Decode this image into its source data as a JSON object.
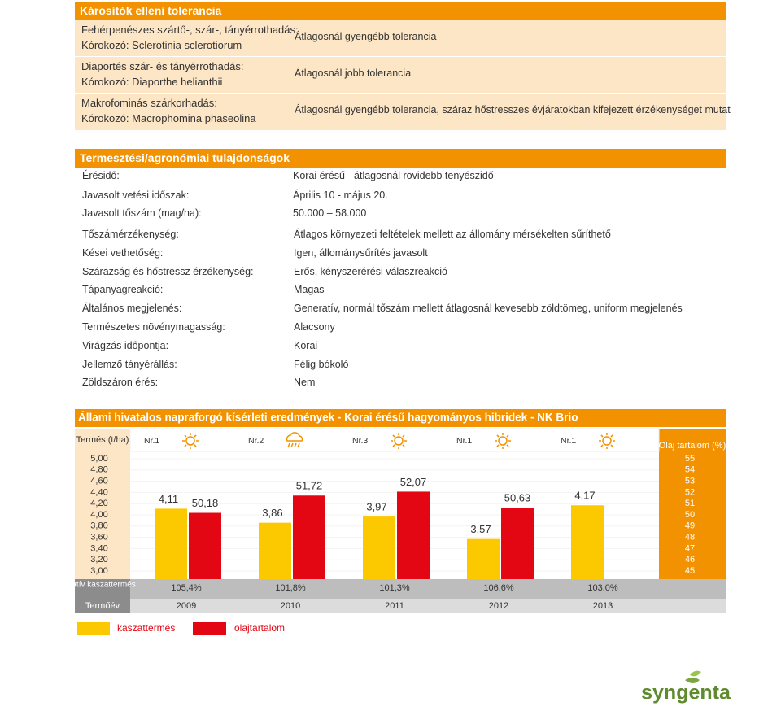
{
  "tolerance": {
    "title": "Károsítók elleni tolerancia",
    "rows": [
      {
        "left": [
          "Fehérpenészes szártő-, szár-, tányérrothadás:",
          "Kórokozó: Sclerotinia sclerotiorum"
        ],
        "right": "Átlagosnál gyengébb tolerancia"
      },
      {
        "left": [
          "Diaportés szár- és tányérrothadás:",
          "Kórokozó: Diaporthe helianthii"
        ],
        "right": "Átlagosnál jobb tolerancia"
      },
      {
        "left": [
          "Makrofominás szárkorhadás:",
          "Kórokozó: Macrophomina phaseolina"
        ],
        "right": "Átlagosnál gyengébb tolerancia, száraz hőstresszes évjáratokban kifejezett érzékenységet mutat"
      }
    ]
  },
  "agronomy": {
    "title": "Termesztési/agronómiai tulajdonságok",
    "rows": [
      {
        "label": "Érésidő:",
        "value": "Korai érésű - átlagosnál rövidebb tenyészidő"
      },
      {
        "label": "Javasolt vetési időszak:",
        "value": "Április 10 - május 20."
      },
      {
        "label": "Javasolt tőszám (mag/ha):",
        "value": "50.000 – 58.000"
      },
      {
        "label": "Tőszámérzékenység:",
        "value": "Átlagos környezeti feltételek mellett az állomány mérsékelten sűríthető"
      },
      {
        "label": "Kései vethetőség:",
        "value": "Igen, állománysűrítés javasolt"
      },
      {
        "label": "Szárazság és hőstressz érzékenység:",
        "value": "Erős, kényszerérési válaszreakció"
      },
      {
        "label": "Tápanyagreakció:",
        "value": "Magas"
      },
      {
        "label": "Általános megjelenés:",
        "value": "Generatív, normál tőszám mellett átlagosnál kevesebb zöldtömeg, uniform megjelenés"
      },
      {
        "label": "Természetes növénymagasság:",
        "value": "Alacsony"
      },
      {
        "label": "Virágzás időpontja:",
        "value": "Korai"
      },
      {
        "label": "Jellemző tányérállás:",
        "value": "Félig bókoló"
      },
      {
        "label": "Zöldszáron érés:",
        "value": "Nem"
      }
    ]
  },
  "chart_data": {
    "type": "bar",
    "title": "Állami hivatalos napraforgó kísérleti eredmények - Korai érésű hagyományos hibridek - NK Brio",
    "y_label": "Termés (t/ha)",
    "y2_label": "Olaj tartalom (%)",
    "categories": [
      "2009",
      "2010",
      "2011",
      "2012",
      "2013"
    ],
    "group_labels": [
      "Nr.1",
      "Nr.2",
      "Nr.3",
      "Nr.1",
      "Nr.1"
    ],
    "x_label": "Termőév",
    "relative_label": "relatív kaszattermés",
    "relative_labels": [
      "105,4%",
      "101,8%",
      "101,3%",
      "106,6%",
      "103,0%"
    ],
    "series": [
      {
        "name": "kaszattermés",
        "color": "#fcc800",
        "values": [
          4.11,
          3.86,
          3.97,
          3.57,
          4.17
        ],
        "value_labels": [
          "4,11",
          "3,86",
          "3,97",
          "3,57",
          "4,17"
        ]
      },
      {
        "name": "olajtartalom",
        "color": "#e30613",
        "axis": "y2",
        "values": [
          50.18,
          51.72,
          52.07,
          50.63,
          null
        ],
        "value_labels": [
          "50,18",
          "51,72",
          "52,07",
          "50,63",
          null
        ]
      }
    ],
    "ylim": [
      3,
      5
    ],
    "yticks": [
      {
        "value": 5,
        "label": "5,00"
      },
      {
        "value": 4.8,
        "label": "4,80"
      },
      {
        "value": 4.6,
        "label": "4,60"
      },
      {
        "value": 4.4,
        "label": "4,40"
      },
      {
        "value": 4.2,
        "label": "4,20"
      },
      {
        "value": 4,
        "label": "4,00"
      },
      {
        "value": 3.8,
        "label": "3,80"
      },
      {
        "value": 3.6,
        "label": "3,60"
      },
      {
        "value": 3.4,
        "label": "3,40"
      },
      {
        "value": 3.2,
        "label": "3,20"
      },
      {
        "value": 3,
        "label": "3,00"
      }
    ],
    "y2lim": [
      45,
      55
    ],
    "y2ticks": [
      55,
      54,
      53,
      52,
      51,
      50,
      49,
      48,
      47,
      46,
      45
    ]
  },
  "logo": "syngenta"
}
